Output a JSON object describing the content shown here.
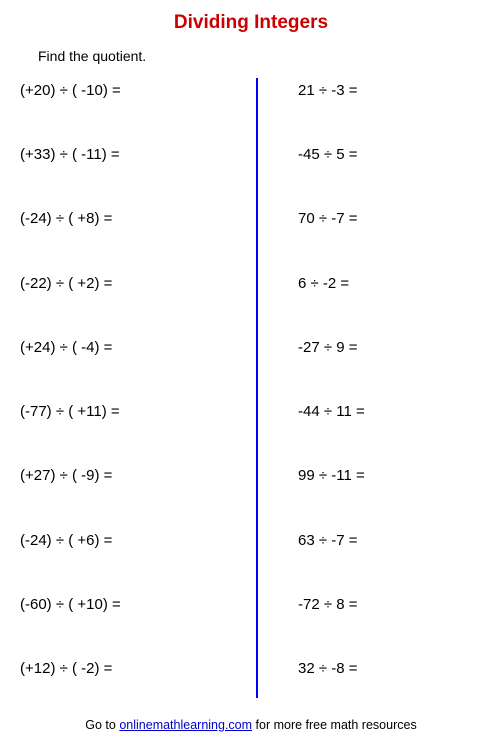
{
  "title": "Dividing Integers",
  "title_color": "#cc0000",
  "instruction": "Find the quotient.",
  "divider_color": "#0000ff",
  "link_color": "#0000cc",
  "left_problems": [
    "(+20) ÷ ( -10) =",
    "(+33) ÷ ( -11) =",
    "(-24) ÷ ( +8) =",
    "(-22) ÷ ( +2) =",
    "(+24) ÷ ( -4) =",
    "(-77) ÷ ( +11) =",
    "(+27) ÷ ( -9) =",
    "(-24) ÷ ( +6) =",
    "(-60) ÷ ( +10) =",
    "(+12) ÷ ( -2) ="
  ],
  "right_problems": [
    "21 ÷ -3 =",
    "-45 ÷ 5 =",
    "70 ÷ -7 =",
    "6 ÷ -2 =",
    "-27 ÷ 9 =",
    "-44 ÷ 11 =",
    "99 ÷ -11 =",
    "63 ÷ -7 =",
    "-72 ÷ 8 =",
    "32 ÷ -8 ="
  ],
  "footer_prefix": "Go to ",
  "footer_link": "onlinemathlearning.com",
  "footer_suffix": " for more free math resources"
}
